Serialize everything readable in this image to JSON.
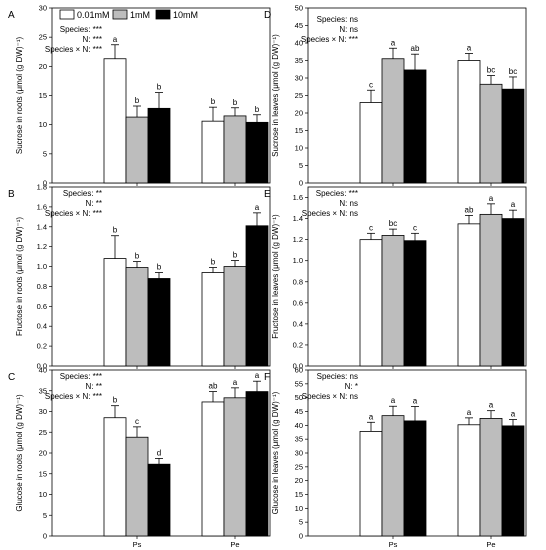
{
  "legend": [
    {
      "name": "0.01mM",
      "color": "#ffffff"
    },
    {
      "name": "1mM",
      "color": "#bdbdbd"
    },
    {
      "name": "10mM",
      "color": "#000000"
    }
  ],
  "chart_data": [
    {
      "type": "bar",
      "panel": "A",
      "ylabel": "Sucrose in roots (μmol (g DW)⁻¹)",
      "ylim": [
        0,
        30
      ],
      "yticks": [
        0,
        5,
        10,
        15,
        20,
        25,
        30
      ],
      "categories": [
        "Ps",
        "Pe"
      ],
      "series": [
        {
          "name": "0.01mM",
          "values": [
            21.3,
            10.6
          ],
          "errors": [
            2.4,
            2.4
          ]
        },
        {
          "name": "1mM",
          "values": [
            11.3,
            11.5
          ],
          "errors": [
            1.9,
            1.4
          ]
        },
        {
          "name": "10mM",
          "values": [
            12.8,
            10.4
          ],
          "errors": [
            2.7,
            1.3
          ]
        }
      ],
      "letters": [
        [
          "a",
          "b",
          "b"
        ],
        [
          "b",
          "b",
          "b"
        ]
      ],
      "stats": [
        "Species: ***",
        "N: ***",
        "Species × N: ***"
      ],
      "stats_pos": "top-left",
      "show_xticks": false
    },
    {
      "type": "bar",
      "panel": "B",
      "ylabel": "Fructose in roots (μmol (g DW)⁻¹)",
      "ylim": [
        0,
        1.8
      ],
      "yticks": [
        0.0,
        0.2,
        0.4,
        0.6,
        0.8,
        1.0,
        1.2,
        1.4,
        1.6,
        1.8
      ],
      "categories": [
        "Ps",
        "Pe"
      ],
      "series": [
        {
          "name": "0.01mM",
          "values": [
            1.08,
            0.94
          ],
          "errors": [
            0.23,
            0.05
          ]
        },
        {
          "name": "1mM",
          "values": [
            0.99,
            1.0
          ],
          "errors": [
            0.06,
            0.06
          ]
        },
        {
          "name": "10mM",
          "values": [
            0.88,
            1.41
          ],
          "errors": [
            0.06,
            0.13
          ]
        }
      ],
      "letters": [
        [
          "b",
          "b",
          "b"
        ],
        [
          "b",
          "b",
          "a"
        ]
      ],
      "stats": [
        "Species: **",
        "N: **",
        "Species × N: ***"
      ],
      "stats_pos": "top-left",
      "show_xticks": false
    },
    {
      "type": "bar",
      "panel": "C",
      "ylabel": "Glucose in roots (μmol (g DW)⁻¹)",
      "ylim": [
        0,
        40
      ],
      "yticks": [
        0,
        5,
        10,
        15,
        20,
        25,
        30,
        35,
        40
      ],
      "categories": [
        "Ps",
        "Pe"
      ],
      "series": [
        {
          "name": "0.01mM",
          "values": [
            28.5,
            32.3
          ],
          "errors": [
            2.9,
            2.5
          ]
        },
        {
          "name": "1mM",
          "values": [
            23.8,
            33.3
          ],
          "errors": [
            2.5,
            2.4
          ]
        },
        {
          "name": "10mM",
          "values": [
            17.3,
            34.8
          ],
          "errors": [
            1.4,
            2.5
          ]
        }
      ],
      "letters": [
        [
          "b",
          "c",
          "d"
        ],
        [
          "ab",
          "a",
          "a"
        ]
      ],
      "stats": [
        "Species: ***",
        "N: **",
        "Species × N: ***"
      ],
      "stats_pos": "top-left",
      "show_xticks": true
    },
    {
      "type": "bar",
      "panel": "D",
      "ylabel": "Sucrose in leaves (μmol (g DW)⁻¹)",
      "ylim": [
        0,
        50
      ],
      "yticks": [
        0,
        5,
        10,
        15,
        20,
        25,
        30,
        35,
        40,
        45,
        50
      ],
      "categories": [
        "Ps",
        "Pe"
      ],
      "series": [
        {
          "name": "0.01mM",
          "values": [
            23.0,
            35.0
          ],
          "errors": [
            3.5,
            2.0
          ]
        },
        {
          "name": "1mM",
          "values": [
            35.5,
            28.2
          ],
          "errors": [
            3.0,
            2.5
          ]
        },
        {
          "name": "10mM",
          "values": [
            32.3,
            26.8
          ],
          "errors": [
            4.5,
            3.5
          ]
        }
      ],
      "letters": [
        [
          "c",
          "a",
          "ab"
        ],
        [
          "a",
          "bc",
          "bc"
        ]
      ],
      "stats": [
        "Species: ns",
        "N: ns",
        "Species × N: ***"
      ],
      "stats_pos": "top-left",
      "show_xticks": false
    },
    {
      "type": "bar",
      "panel": "E",
      "ylabel": "Fructose in leaves (μmol (g DW)⁻¹)",
      "ylim": [
        0,
        1.7
      ],
      "yticks": [
        0.0,
        0.2,
        0.4,
        0.6,
        0.8,
        1.0,
        1.2,
        1.4,
        1.6
      ],
      "categories": [
        "Ps",
        "Pe"
      ],
      "series": [
        {
          "name": "0.01mM",
          "values": [
            1.2,
            1.35
          ],
          "errors": [
            0.06,
            0.08
          ]
        },
        {
          "name": "1mM",
          "values": [
            1.24,
            1.44
          ],
          "errors": [
            0.06,
            0.1
          ]
        },
        {
          "name": "10mM",
          "values": [
            1.19,
            1.4
          ],
          "errors": [
            0.07,
            0.08
          ]
        }
      ],
      "letters": [
        [
          "c",
          "bc",
          "c"
        ],
        [
          "ab",
          "a",
          "a"
        ]
      ],
      "stats": [
        "Species: ***",
        "N: ns",
        "Species × N: ns"
      ],
      "stats_pos": "top-left",
      "show_xticks": false
    },
    {
      "type": "bar",
      "panel": "F",
      "ylabel": "Glucose in leaves (μmol (g DW)⁻¹)",
      "ylim": [
        0,
        60
      ],
      "yticks": [
        0,
        5,
        10,
        15,
        20,
        25,
        30,
        35,
        40,
        45,
        50,
        55,
        60
      ],
      "categories": [
        "Ps",
        "Pe"
      ],
      "series": [
        {
          "name": "0.01mM",
          "values": [
            37.8,
            40.2
          ],
          "errors": [
            3.3,
            2.5
          ]
        },
        {
          "name": "1mM",
          "values": [
            43.5,
            42.5
          ],
          "errors": [
            3.4,
            2.8
          ]
        },
        {
          "name": "10mM",
          "values": [
            41.6,
            39.8
          ],
          "errors": [
            5.2,
            2.3
          ]
        }
      ],
      "letters": [
        [
          "a",
          "a",
          "a"
        ],
        [
          "a",
          "a",
          "a"
        ]
      ],
      "stats": [
        "Species: ns",
        "N: *",
        "Species × N: ns"
      ],
      "stats_pos": "top-left",
      "show_xticks": true
    }
  ]
}
